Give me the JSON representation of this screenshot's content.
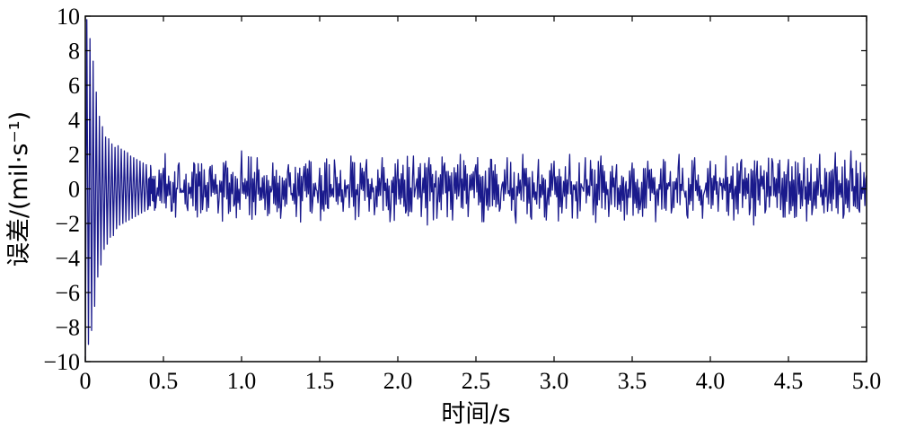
{
  "chart_data": {
    "type": "line",
    "title": "",
    "xlabel": "时间/s",
    "ylabel": "误差/(mil·s⁻¹)",
    "xlim": [
      0,
      5.0
    ],
    "ylim": [
      -10,
      10
    ],
    "x_ticks": [
      0,
      0.5,
      1.0,
      1.5,
      2.0,
      2.5,
      3.0,
      3.5,
      4.0,
      4.5,
      5.0
    ],
    "x_tick_labels": [
      "0",
      "0.5",
      "1.0",
      "1.5",
      "2.0",
      "2.5",
      "3.0",
      "3.5",
      "4.0",
      "4.5",
      "5.0"
    ],
    "y_ticks": [
      -10,
      -8,
      -6,
      -4,
      -2,
      0,
      2,
      4,
      6,
      8,
      10
    ],
    "y_tick_labels": [
      "−10",
      "−8",
      "−6",
      "−4",
      "−2",
      "0",
      "2",
      "4",
      "6",
      "8",
      "10"
    ],
    "grid": false,
    "line_color": "#1a1a8c",
    "series": [
      {
        "x": [
          0,
          0.01,
          0.02,
          0.03,
          0.04,
          0.05,
          0.06,
          0.07,
          0.08,
          0.09,
          0.1,
          0.11,
          0.12,
          0.13,
          0.14,
          0.15,
          0.16,
          0.17,
          0.18,
          0.19,
          0.2,
          0.21,
          0.22,
          0.23,
          0.24,
          0.25,
          0.26,
          0.27,
          0.28,
          0.29,
          0.3,
          0.31,
          0.32,
          0.33,
          0.34,
          0.35,
          0.36,
          0.37,
          0.38,
          0.39,
          0.4,
          0.42,
          0.45,
          0.5,
          0.55,
          0.6,
          0.65,
          0.7,
          0.75,
          0.8,
          0.85,
          0.9,
          0.95,
          1.0,
          1.05,
          1.1,
          1.15,
          1.2,
          1.25,
          1.3,
          1.35,
          1.4,
          1.45,
          1.5,
          1.55,
          1.6,
          1.65,
          1.7,
          1.75,
          1.8,
          1.85,
          1.9,
          1.95,
          2.0,
          2.05,
          2.1,
          2.15,
          2.2,
          2.25,
          2.3,
          2.35,
          2.4,
          2.45,
          2.5,
          2.55,
          2.6,
          2.65,
          2.7,
          2.75,
          2.8,
          2.85,
          2.9,
          2.95,
          3.0,
          3.05,
          3.1,
          3.15,
          3.2,
          3.25,
          3.3,
          3.35,
          3.4,
          3.45,
          3.5,
          3.55,
          3.6,
          3.65,
          3.7,
          3.75,
          3.8,
          3.85,
          3.9,
          3.95,
          4.0,
          4.05,
          4.1,
          4.15,
          4.2,
          4.25,
          4.3,
          4.35,
          4.4,
          4.45,
          4.5,
          4.55,
          4.6,
          4.65,
          4.7,
          4.75,
          4.8,
          4.85,
          4.9,
          4.95,
          5.0
        ],
        "y": [
          -10,
          9.8,
          -9.0,
          8.7,
          -8.2,
          7.4,
          -6.8,
          5.6,
          -5.1,
          4.2,
          -4.4,
          3.6,
          -3.5,
          3.0,
          -3.2,
          2.9,
          -2.8,
          2.6,
          -2.7,
          2.4,
          -2.3,
          2.5,
          -2.1,
          2.3,
          -2.0,
          2.2,
          -1.9,
          2.1,
          -1.8,
          1.9,
          -1.7,
          1.8,
          -1.6,
          1.7,
          -1.5,
          1.6,
          -1.4,
          1.5,
          -1.3,
          1.4,
          -1.2,
          1.1,
          -1.1,
          1.2,
          -1.3,
          1.5,
          -1.0,
          1.4,
          -1.2,
          1.3,
          -1.4,
          1.6,
          -1.0,
          2.2,
          -1.5,
          1.8,
          -1.2,
          1.5,
          -1.7,
          1.4,
          -1.6,
          1.3,
          -1.4,
          1.2,
          -1.1,
          1.0,
          -1.3,
          1.9,
          -1.6,
          1.7,
          -1.5,
          1.8,
          -1.9,
          1.7,
          -1.4,
          1.9,
          -1.6,
          1.8,
          -1.7,
          1.5,
          -1.8,
          2.0,
          -1.6,
          1.4,
          -1.9,
          1.7,
          -1.3,
          1.8,
          -1.5,
          2.0,
          -1.6,
          1.7,
          -1.8,
          1.6,
          -1.4,
          2.0,
          -1.7,
          1.8,
          -1.5,
          1.9,
          -1.6,
          1.4,
          -1.8,
          1.5,
          -1.2,
          1.6,
          -1.9,
          1.7,
          -1.4,
          2.0,
          -1.5,
          1.8,
          -1.7,
          1.6,
          -1.3,
          1.9,
          -1.8,
          1.7,
          -1.5,
          1.6,
          -1.4,
          1.5,
          -1.2,
          1.7,
          -1.6,
          1.8,
          -1.5,
          2.0,
          -1.3,
          2.1,
          -1.7,
          2.2,
          -1.2,
          0.8
        ]
      }
    ]
  }
}
